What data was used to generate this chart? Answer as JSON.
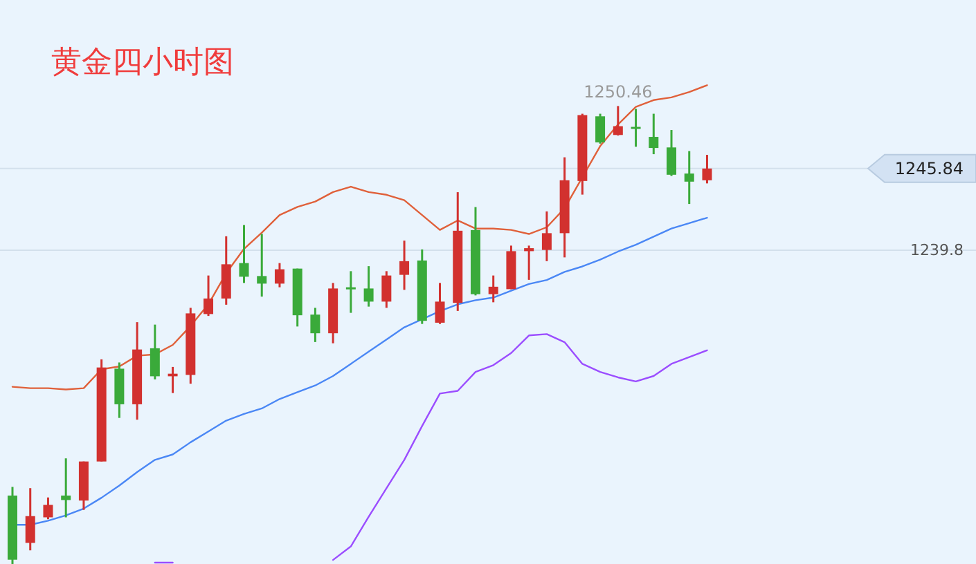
{
  "chart_data": {
    "type": "candlestick",
    "title": "黄金四小时图",
    "categories": [
      null,
      null,
      null,
      null,
      null,
      null,
      null,
      null,
      null,
      null,
      null,
      null,
      null,
      null,
      null,
      null,
      null,
      null,
      null,
      null,
      null,
      null,
      null,
      null,
      null,
      null,
      null,
      null,
      null,
      null,
      null,
      null,
      null,
      null,
      null,
      null,
      null,
      null,
      null,
      null
    ],
    "ohlc": [
      [
        1221.66,
        1222.3,
        1216.6,
        1216.92
      ],
      [
        1218.16,
        1222.21,
        1217.61,
        1220.14
      ],
      [
        1220.05,
        1221.52,
        1219.91,
        1220.97
      ],
      [
        1221.66,
        1224.41,
        1220.05,
        1221.33
      ],
      [
        1221.29,
        1224.18,
        1220.6,
        1224.18
      ],
      [
        1224.18,
        1231.73,
        1224.18,
        1231.13
      ],
      [
        1231.04,
        1231.5,
        1227.4,
        1228.41
      ],
      [
        1228.41,
        1234.48,
        1227.27,
        1232.46
      ],
      [
        1232.55,
        1234.3,
        1230.25,
        1230.48
      ],
      [
        1230.48,
        1231.17,
        1229.24,
        1230.67
      ],
      [
        1230.58,
        1235.54,
        1229.93,
        1235.13
      ],
      [
        1235.08,
        1237.93,
        1234.94,
        1236.23
      ],
      [
        1236.23,
        1240.83,
        1235.77,
        1238.76
      ],
      [
        1238.85,
        1241.66,
        1237.38,
        1237.84
      ],
      [
        1237.89,
        1241.01,
        1236.37,
        1237.33
      ],
      [
        1237.33,
        1238.85,
        1237.06,
        1238.39
      ],
      [
        1238.44,
        1238.44,
        1234.16,
        1234.99
      ],
      [
        1235.04,
        1235.54,
        1233.01,
        1233.66
      ],
      [
        1233.66,
        1237.38,
        1232.92,
        1236.97
      ],
      [
        1237.06,
        1238.25,
        1235.17,
        1236.92
      ],
      [
        1236.97,
        1238.62,
        1235.63,
        1236.0
      ],
      [
        1236.0,
        1238.25,
        1235.54,
        1237.93
      ],
      [
        1237.98,
        1240.51,
        1236.87,
        1238.99
      ],
      [
        1239.04,
        1239.86,
        1234.35,
        1234.58
      ],
      [
        1234.44,
        1237.38,
        1234.35,
        1236.0
      ],
      [
        1235.91,
        1244.09,
        1235.31,
        1241.24
      ],
      [
        1241.29,
        1242.99,
        1236.46,
        1236.55
      ],
      [
        1236.55,
        1237.93,
        1235.95,
        1237.1
      ],
      [
        1236.92,
        1240.14,
        1236.92,
        1239.73
      ],
      [
        1239.73,
        1240.14,
        1237.61,
        1239.95
      ],
      [
        1239.82,
        1242.67,
        1238.99,
        1241.06
      ],
      [
        1241.06,
        1246.67,
        1239.27,
        1244.97
      ],
      [
        1244.92,
        1249.89,
        1243.91,
        1249.79
      ],
      [
        1249.7,
        1249.89,
        1247.68,
        1247.77
      ],
      [
        1248.32,
        1250.46,
        1248.28,
        1248.97
      ],
      [
        1248.92,
        1250.25,
        1247.45,
        1248.78
      ],
      [
        1248.18,
        1249.89,
        1246.9,
        1247.36
      ],
      [
        1247.4,
        1248.69,
        1245.29,
        1245.38
      ],
      [
        1245.47,
        1247.13,
        1243.22,
        1244.87
      ],
      [
        1244.97,
        1246.85,
        1244.74,
        1245.84
      ]
    ],
    "colors": [
      "#3aaa3a",
      "#d2312f",
      "#d2312f",
      "#3aaa3a",
      "#d2312f",
      "#d2312f",
      "#3aaa3a",
      "#d2312f",
      "#3aaa3a",
      "#d2312f",
      "#d2312f",
      "#d2312f",
      "#d2312f",
      "#3aaa3a",
      "#3aaa3a",
      "#d2312f",
      "#3aaa3a",
      "#3aaa3a",
      "#d2312f",
      "#3aaa3a",
      "#3aaa3a",
      "#d2312f",
      "#d2312f",
      "#3aaa3a",
      "#d2312f",
      "#d2312f",
      "#3aaa3a",
      "#d2312f",
      "#d2312f",
      "#d2312f",
      "#d2312f",
      "#d2312f",
      "#d2312f",
      "#3aaa3a",
      "#d2312f",
      "#3aaa3a",
      "#3aaa3a",
      "#3aaa3a",
      "#3aaa3a",
      "#d2312f"
    ],
    "series": [
      {
        "type": "line",
        "color": "#e0603a",
        "values": [
          1229.7,
          1229.6,
          1229.6,
          1229.5,
          1229.6,
          1231.0,
          1231.2,
          1232.0,
          1232.1,
          1232.8,
          1234.2,
          1235.8,
          1238.1,
          1239.9,
          1241.1,
          1242.4,
          1243.0,
          1243.4,
          1244.1,
          1244.5,
          1244.1,
          1243.9,
          1243.5,
          1242.4,
          1241.3,
          1242.0,
          1241.4,
          1241.4,
          1241.3,
          1241.0,
          1241.5,
          1242.9,
          1245.2,
          1247.5,
          1249.1,
          1250.4,
          1250.9,
          1251.1,
          1251.5,
          1252.0
        ]
      },
      {
        "type": "line",
        "color": "#4a87f5",
        "values": [
          1219.5,
          1219.5,
          1219.8,
          1220.2,
          1220.7,
          1221.5,
          1222.4,
          1223.4,
          1224.3,
          1224.7,
          1225.6,
          1226.4,
          1227.2,
          1227.7,
          1228.1,
          1228.8,
          1229.3,
          1229.8,
          1230.5,
          1231.4,
          1232.3,
          1233.2,
          1234.1,
          1234.7,
          1235.3,
          1235.8,
          1236.1,
          1236.3,
          1236.8,
          1237.3,
          1237.6,
          1238.2,
          1238.6,
          1239.1,
          1239.7,
          1240.2,
          1240.8,
          1241.4,
          1241.8,
          1242.2
        ]
      },
      {
        "type": "line",
        "color": "#9b4dff",
        "values": [
          null,
          null,
          null,
          null,
          null,
          null,
          null,
          null,
          1216.7,
          1216.7,
          null,
          null,
          null,
          null,
          null,
          null,
          null,
          null,
          1216.9,
          1217.9,
          1220.1,
          1222.2,
          1224.3,
          1226.8,
          1229.2,
          1229.4,
          1230.8,
          1231.3,
          1232.2,
          1233.5,
          1233.6,
          1233.0,
          1231.4,
          1230.8,
          1230.4,
          1230.1,
          1230.5,
          1231.4,
          1231.9,
          1232.4
        ]
      }
    ],
    "ylim": [
      1216.6,
      1258.3
    ],
    "yticks": [
      1239.8,
      1245.84
    ],
    "grid": "y",
    "tick_labels": "y",
    "annotations": [
      "1250.46"
    ]
  }
}
